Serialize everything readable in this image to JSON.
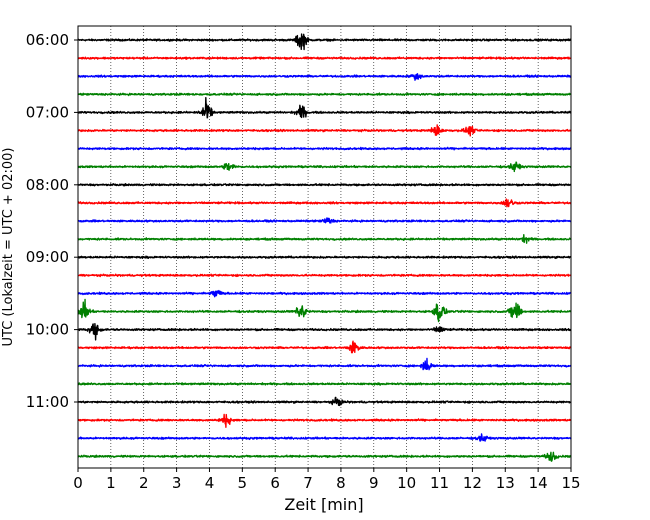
{
  "chart_data": {
    "type": "line",
    "title": "",
    "xlabel": "Zeit  [min]",
    "ylabel": "UTC (Lokalzeit = UTC + 02:00)",
    "xlim": [
      0,
      15
    ],
    "x_ticks": [
      "0",
      "1",
      "2",
      "3",
      "4",
      "5",
      "6",
      "7",
      "8",
      "9",
      "10",
      "11",
      "12",
      "13",
      "14",
      "15"
    ],
    "y_tick_labels": [
      "06:00",
      "07:00",
      "08:00",
      "09:00",
      "10:00",
      "11:00"
    ],
    "grid": "vertical dotted lines at each minute",
    "trace_color_cycle": [
      "#000000",
      "#ff0000",
      "#0000ff",
      "#008000"
    ],
    "series": [
      {
        "start": "06:00",
        "color": "#000000",
        "events": [
          {
            "t": 6.8,
            "amp": 1.6
          }
        ]
      },
      {
        "start": "06:15",
        "color": "#ff0000",
        "events": []
      },
      {
        "start": "06:30",
        "color": "#0000ff",
        "events": [
          {
            "t": 10.3,
            "amp": 0.5
          }
        ]
      },
      {
        "start": "06:45",
        "color": "#008000",
        "events": []
      },
      {
        "start": "07:00",
        "color": "#000000",
        "events": [
          {
            "t": 3.9,
            "amp": 1.7
          },
          {
            "t": 6.8,
            "amp": 1.0
          }
        ]
      },
      {
        "start": "07:15",
        "color": "#ff0000",
        "events": [
          {
            "t": 10.9,
            "amp": 0.8
          },
          {
            "t": 11.9,
            "amp": 0.7
          }
        ]
      },
      {
        "start": "07:30",
        "color": "#0000ff",
        "events": []
      },
      {
        "start": "07:45",
        "color": "#008000",
        "events": [
          {
            "t": 4.6,
            "amp": 0.8
          },
          {
            "t": 13.3,
            "amp": 0.7
          }
        ]
      },
      {
        "start": "08:00",
        "color": "#000000",
        "events": []
      },
      {
        "start": "08:15",
        "color": "#ff0000",
        "events": [
          {
            "t": 13.1,
            "amp": 0.8
          }
        ]
      },
      {
        "start": "08:30",
        "color": "#0000ff",
        "events": [
          {
            "t": 7.6,
            "amp": 0.5
          }
        ]
      },
      {
        "start": "08:45",
        "color": "#008000",
        "events": [
          {
            "t": 13.6,
            "amp": 0.5
          }
        ]
      },
      {
        "start": "09:00",
        "color": "#000000",
        "events": []
      },
      {
        "start": "09:15",
        "color": "#ff0000",
        "events": []
      },
      {
        "start": "09:30",
        "color": "#0000ff",
        "events": [
          {
            "t": 4.2,
            "amp": 0.6
          }
        ]
      },
      {
        "start": "09:45",
        "color": "#008000",
        "events": [
          {
            "t": 0.2,
            "amp": 1.4
          },
          {
            "t": 6.8,
            "amp": 1.2
          },
          {
            "t": 11.0,
            "amp": 1.7
          },
          {
            "t": 13.3,
            "amp": 1.8
          }
        ]
      },
      {
        "start": "10:00",
        "color": "#000000",
        "events": [
          {
            "t": 0.5,
            "amp": 1.2
          },
          {
            "t": 11.0,
            "amp": 0.5
          }
        ]
      },
      {
        "start": "10:15",
        "color": "#ff0000",
        "events": [
          {
            "t": 8.4,
            "amp": 1.0
          }
        ]
      },
      {
        "start": "10:30",
        "color": "#0000ff",
        "events": [
          {
            "t": 10.6,
            "amp": 0.9
          }
        ]
      },
      {
        "start": "10:45",
        "color": "#008000",
        "events": []
      },
      {
        "start": "11:00",
        "color": "#000000",
        "events": [
          {
            "t": 7.9,
            "amp": 0.6
          }
        ]
      },
      {
        "start": "11:15",
        "color": "#ff0000",
        "events": [
          {
            "t": 4.5,
            "amp": 0.9
          }
        ]
      },
      {
        "start": "11:30",
        "color": "#0000ff",
        "events": [
          {
            "t": 12.3,
            "amp": 0.5
          }
        ]
      },
      {
        "start": "11:45",
        "color": "#008000",
        "events": [
          {
            "t": 14.4,
            "amp": 0.8
          }
        ]
      }
    ]
  }
}
